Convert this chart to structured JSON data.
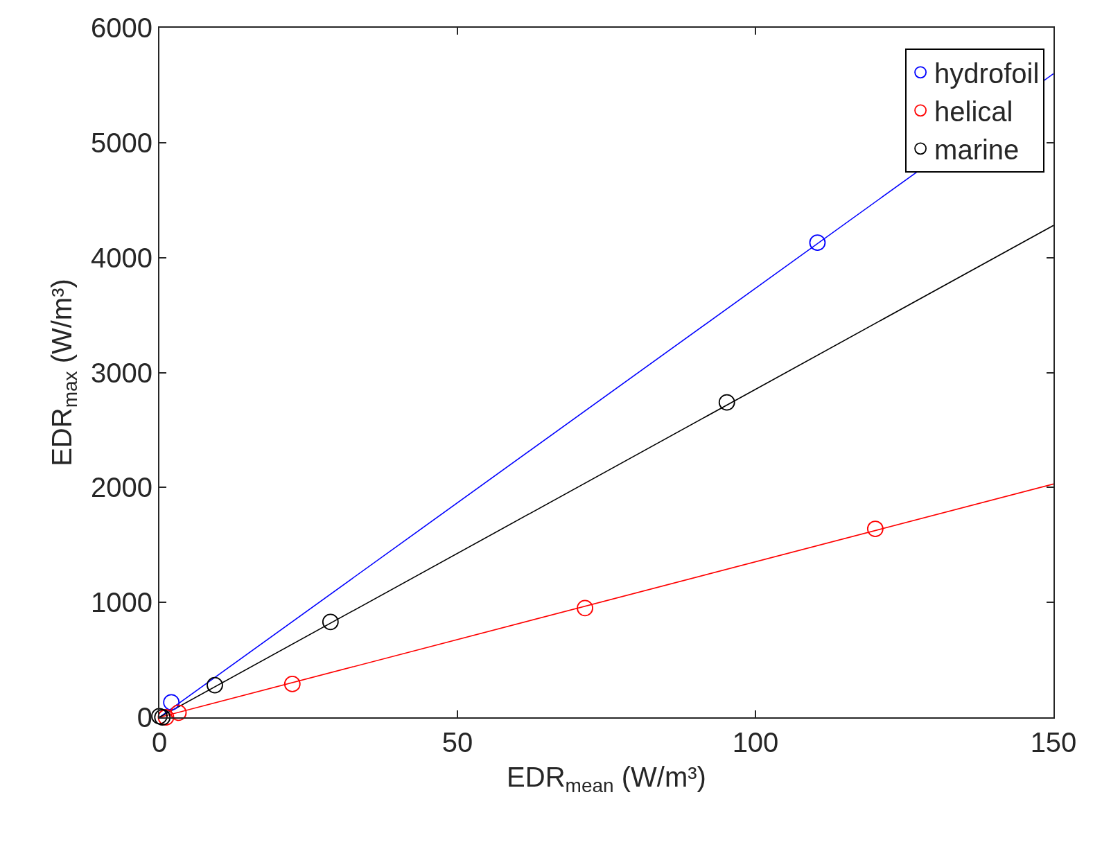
{
  "chart_data": {
    "type": "scatter",
    "xlabel": "EDR$_{mean}$ (W/m³)",
    "ylabel": "EDR$_{max}$ (W/m³)",
    "xlim": [
      0,
      150
    ],
    "xticks": [
      0,
      50,
      100,
      150
    ],
    "ylim": [
      0,
      6000
    ],
    "yticks": [
      0,
      1000,
      2000,
      3000,
      4000,
      5000,
      6000
    ],
    "legend": "top right",
    "marker": "circle",
    "series": [
      {
        "name": "hydrofoil",
        "color": "#0000ff",
        "x": [
          2,
          110.4
        ],
        "values": [
          130,
          4130
        ]
      },
      {
        "name": "helical",
        "color": "#ff0000",
        "x": [
          1.1,
          3.2,
          22.3,
          71.4,
          120.1
        ],
        "values": [
          0,
          40,
          290,
          950,
          1640
        ]
      },
      {
        "name": "marine",
        "color": "#000000",
        "x": [
          0,
          0.5,
          9.3,
          28.7,
          95.2
        ],
        "values": [
          10,
          0,
          280,
          830,
          2740
        ]
      },
      {
        "type": "line",
        "marker": "none",
        "color": "#0000ff",
        "x": [
          0,
          150
        ],
        "values": [
          0,
          5600
        ]
      },
      {
        "type": "line",
        "marker": "none",
        "color": "#ff0000",
        "x": [
          0,
          150
        ],
        "values": [
          0,
          2030
        ]
      },
      {
        "type": "line",
        "marker": "none",
        "color": "#000000",
        "x": [
          0,
          150
        ],
        "values": [
          0,
          4280
        ]
      }
    ]
  }
}
